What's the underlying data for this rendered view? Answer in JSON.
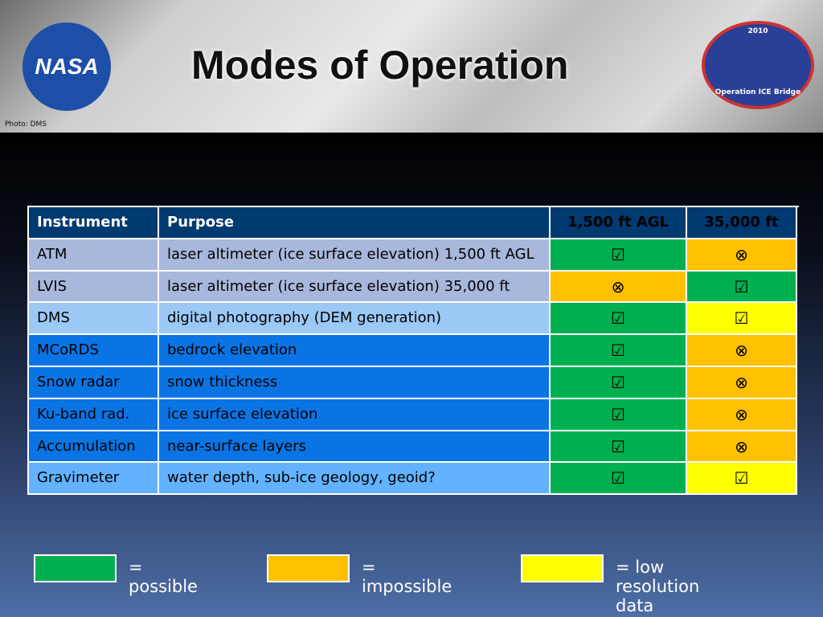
{
  "header": {
    "title": "Modes of Operation",
    "photo_credit": "Photo: DMS",
    "logo_left": "NASA",
    "badge_year": "2010",
    "badge_text": "Operation ICE Bridge"
  },
  "table": {
    "header_color": "#003a70",
    "columns": [
      "Instrument",
      "Purpose",
      "1,500 ft AGL",
      "35,000 ft"
    ],
    "rows": [
      {
        "color": "#a8b8dc",
        "cells": [
          "ATM",
          "laser altimeter (ice surface elevation) 1,500 ft AGL"
        ],
        "modes": [
          {
            "text": "☑",
            "color": "#00b050"
          },
          {
            "text": "⊗",
            "color": "#ffc000"
          }
        ]
      },
      {
        "color": "#a8b8dc",
        "cells": [
          "LVIS",
          "laser altimeter (ice surface elevation) 35,000 ft"
        ],
        "modes": [
          {
            "text": "⊗",
            "color": "#ffc000"
          },
          {
            "text": "☑",
            "color": "#00b050"
          }
        ]
      },
      {
        "color": "#9cc8f6",
        "cells": [
          "DMS",
          "digital photography (DEM generation)"
        ],
        "modes": [
          {
            "text": "☑",
            "color": "#00b050"
          },
          {
            "text": "☑",
            "color": "#ffff00"
          }
        ]
      },
      {
        "color": "#0a74e4",
        "cells": [
          "MCoRDS",
          "bedrock elevation"
        ],
        "modes": [
          {
            "text": "☑",
            "color": "#00b050"
          },
          {
            "text": "⊗",
            "color": "#ffc000"
          }
        ]
      },
      {
        "color": "#0a74e4",
        "cells": [
          "Snow radar",
          "snow thickness"
        ],
        "modes": [
          {
            "text": "☑",
            "color": "#00b050"
          },
          {
            "text": "⊗",
            "color": "#ffc000"
          }
        ]
      },
      {
        "color": "#0a74e4",
        "cells": [
          "Ku-band rad.",
          "ice surface elevation"
        ],
        "modes": [
          {
            "text": "☑",
            "color": "#00b050"
          },
          {
            "text": "⊗",
            "color": "#ffc000"
          }
        ]
      },
      {
        "color": "#0a74e4",
        "cells": [
          "Accumulation",
          "near-surface layers"
        ],
        "modes": [
          {
            "text": "☑",
            "color": "#00b050"
          },
          {
            "text": "⊗",
            "color": "#ffc000"
          }
        ]
      },
      {
        "color": "#62b2ff",
        "cells": [
          "Gravimeter",
          "water depth, sub-ice geology, geoid?"
        ],
        "modes": [
          {
            "text": "☑",
            "color": "#00b050"
          },
          {
            "text": "☑",
            "color": "#ffff00"
          }
        ]
      }
    ]
  },
  "legend": [
    {
      "color": "#00b050",
      "label": "= possible"
    },
    {
      "color": "#ffc000",
      "label": "= impossible"
    },
    {
      "color": "#ffff00",
      "label": "= low resolution data"
    }
  ]
}
